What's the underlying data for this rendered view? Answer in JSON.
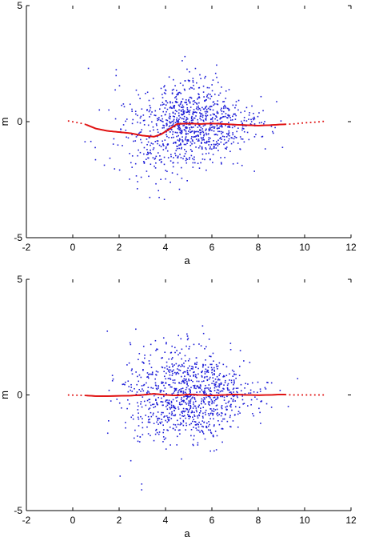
{
  "chart_data": [
    {
      "type": "scatter",
      "title": "",
      "xlabel": "a",
      "ylabel": "m",
      "xlim": [
        -2,
        12
      ],
      "ylim": [
        -5,
        5
      ],
      "xticks": [
        "-2",
        "0",
        "2",
        "4",
        "6",
        "8",
        "10",
        "12"
      ],
      "yticks": [
        "-5",
        "0",
        "5"
      ],
      "grid": false,
      "legend": "none",
      "colors": {
        "points": "#1f1fd8",
        "fit": "#e01010"
      },
      "series": [
        {
          "kind": "points",
          "description_count": 1000,
          "x_mean": 5.0,
          "x_sd": 1.4,
          "y_sd_note": "spread wider at low a, narrowing at high a"
        },
        {
          "kind": "fit",
          "x": [
            -0.3,
            0.5,
            1.0,
            1.5,
            2.0,
            2.5,
            3.0,
            3.5,
            3.8,
            4.2,
            4.5,
            5.0,
            5.5,
            6.0,
            6.5,
            7.0,
            7.5,
            8.0,
            8.5,
            9.0,
            9.5,
            10.0,
            10.5,
            10.9
          ],
          "y": [
            0.05,
            -0.1,
            -0.3,
            -0.4,
            -0.45,
            -0.5,
            -0.6,
            -0.65,
            -0.55,
            -0.3,
            -0.1,
            -0.08,
            -0.1,
            -0.08,
            -0.1,
            -0.13,
            -0.15,
            -0.17,
            -0.15,
            -0.12,
            -0.1,
            -0.05,
            -0.02,
            0.02
          ]
        }
      ]
    },
    {
      "type": "scatter",
      "title": "",
      "xlabel": "a",
      "ylabel": "m",
      "xlim": [
        -2,
        12
      ],
      "ylim": [
        -5,
        5
      ],
      "xticks": [
        "-2",
        "0",
        "2",
        "4",
        "6",
        "8",
        "10",
        "12"
      ],
      "yticks": [
        "-5",
        "0",
        "5"
      ],
      "grid": false,
      "legend": "none",
      "colors": {
        "points": "#1f1fd8",
        "fit": "#e01010"
      },
      "series": [
        {
          "kind": "points",
          "description_count": 1000,
          "x_mean": 5.0,
          "x_sd": 1.4,
          "y_sd_note": "spread wider at low a, narrowing at high a"
        },
        {
          "kind": "fit",
          "x": [
            -0.3,
            0.5,
            1.0,
            1.5,
            2.0,
            2.5,
            3.0,
            3.5,
            4.0,
            4.5,
            5.0,
            5.5,
            6.0,
            6.5,
            7.0,
            7.5,
            8.0,
            8.5,
            9.0,
            9.5,
            10.0,
            10.5,
            10.9
          ],
          "y": [
            0.0,
            -0.02,
            -0.05,
            -0.05,
            -0.04,
            -0.03,
            0.0,
            0.05,
            0.0,
            -0.02,
            0.02,
            0.0,
            -0.02,
            0.0,
            0.02,
            0.0,
            -0.01,
            0.0,
            0.02,
            0.0,
            0.0,
            0.0,
            0.0
          ]
        }
      ]
    }
  ]
}
